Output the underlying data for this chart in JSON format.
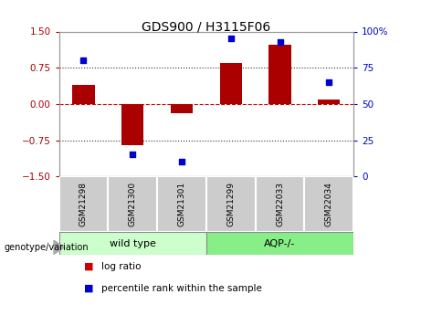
{
  "title": "GDS900 / H3115F06",
  "samples": [
    "GSM21298",
    "GSM21300",
    "GSM21301",
    "GSM21299",
    "GSM22033",
    "GSM22034"
  ],
  "log_ratio": [
    0.4,
    -0.85,
    -0.2,
    0.85,
    1.22,
    0.1
  ],
  "percentile_rank": [
    80,
    15,
    10,
    95,
    93,
    65
  ],
  "bar_color": "#aa0000",
  "dot_color": "#0000cc",
  "ylim_left": [
    -1.5,
    1.5
  ],
  "ylim_right": [
    0,
    100
  ],
  "yticks_left": [
    -1.5,
    -0.75,
    0,
    0.75,
    1.5
  ],
  "yticks_right": [
    0,
    25,
    50,
    75,
    100
  ],
  "ytick_labels_right": [
    "0",
    "25",
    "50",
    "75",
    "100%"
  ],
  "hlines_dotted": [
    0.75,
    -0.75
  ],
  "hline_zero_color": "#cc0000",
  "hline_dotted_color": "#333333",
  "group1_label": "wild type",
  "group2_label": "AQP-/-",
  "group1_indices": [
    0,
    1,
    2
  ],
  "group2_indices": [
    3,
    4,
    5
  ],
  "group1_color": "#ccffcc",
  "group2_color": "#88ee88",
  "genotype_label": "genotype/variation",
  "legend_log_ratio": "log ratio",
  "legend_percentile": "percentile rank within the sample",
  "bar_color_legend": "#cc0000",
  "dot_color_legend": "#0000cc",
  "sample_box_color": "#cccccc",
  "bar_width": 0.45
}
